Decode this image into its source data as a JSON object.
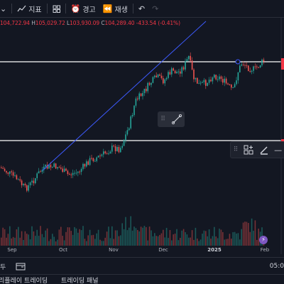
{
  "toolbar": {
    "indicators_label": "지표",
    "alert_label": "경고",
    "replay_label": "재생"
  },
  "ohlc": {
    "open": "104,722.94",
    "high_prefix": "H",
    "high": "105,029.72",
    "low_prefix": "L",
    "low": "103,930.09",
    "close_prefix": "C",
    "close": "104,289.40",
    "change": "-433.54 (-0.41%)"
  },
  "x_axis": {
    "labels": [
      "Sep",
      "Oct",
      "Nov",
      "Dec",
      "2025",
      "Feb"
    ]
  },
  "bottom": {
    "timeframe_cut": "두",
    "time_cut": "05:0",
    "tab_replay": "리플레이 트레이딩",
    "tab_panel": "트레이딩 패널"
  },
  "chart_data": {
    "type": "candlestick",
    "x": [
      "Sep",
      "Oct",
      "Nov",
      "Dec",
      "2025",
      "Feb"
    ],
    "horizontal_lines": 2,
    "trend_lines": 1,
    "volume_panel": true,
    "last_close": 104289.4
  },
  "colors": {
    "up": "#26a69a",
    "down": "#ef5350",
    "trendline": "#3d5afe",
    "hline": "#ffffff"
  }
}
